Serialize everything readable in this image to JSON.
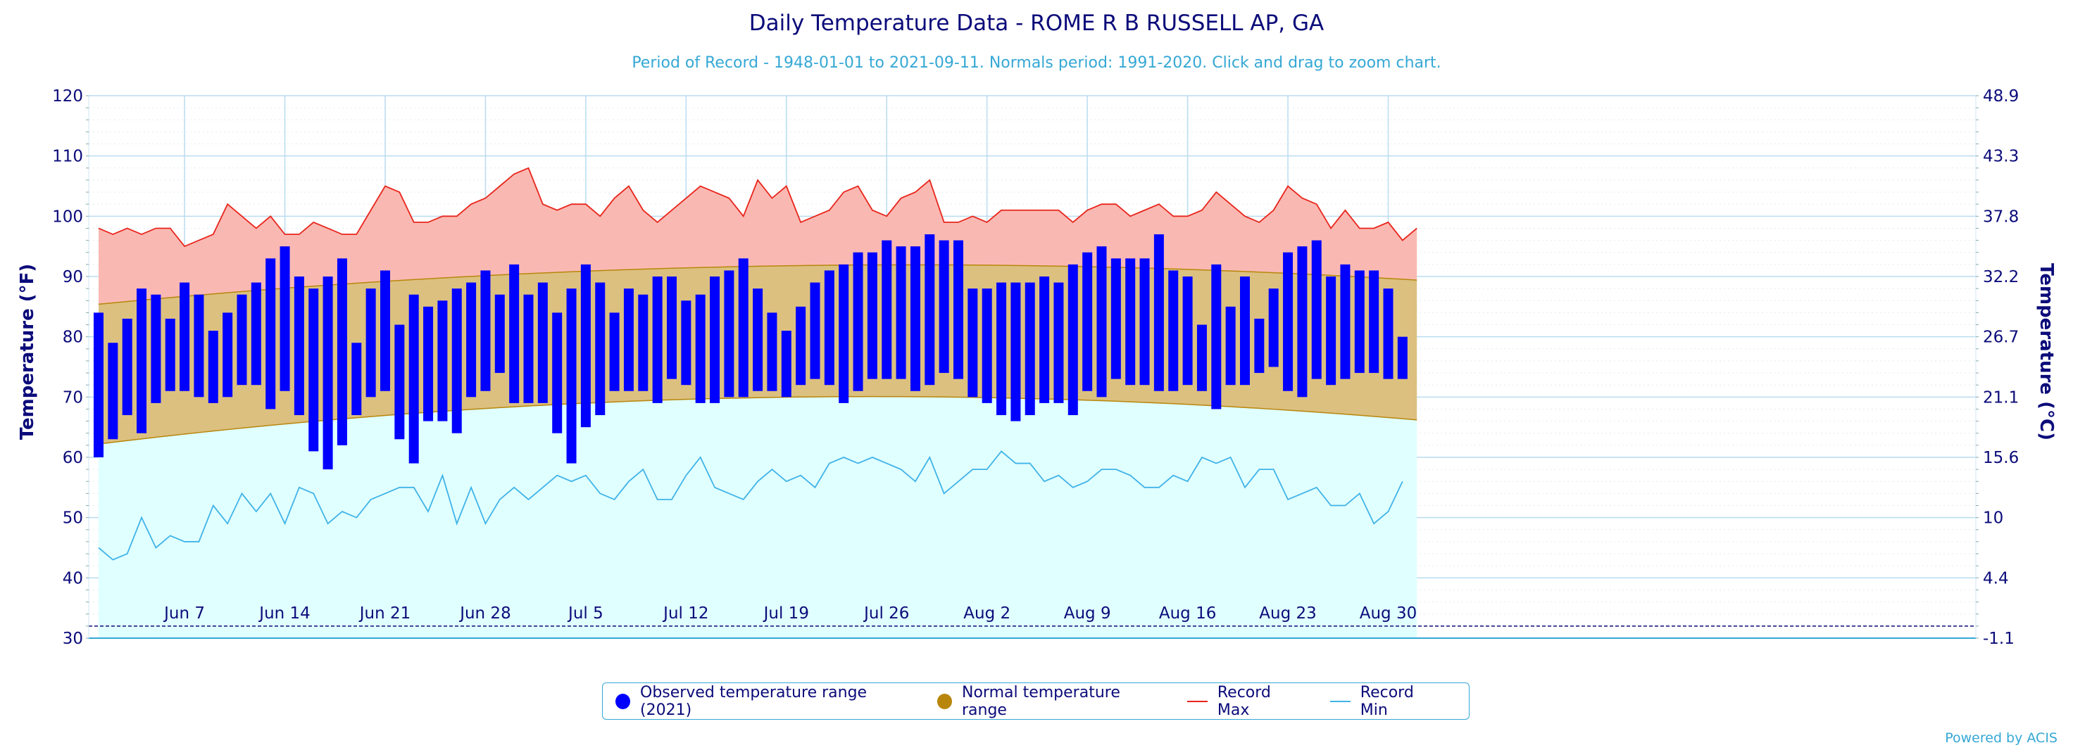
{
  "chart_data": {
    "type": "bar",
    "title": "Daily Temperature Data - ROME R B RUSSELL AP, GA",
    "subtitle": "Period of Record - 1948-01-01 to 2021-09-11. Normals period: 1991-2020. Click and drag to zoom chart.",
    "ylabel": "Temperature (°F)",
    "y2label": "Temperature (°C)",
    "ylim": [
      30,
      120
    ],
    "yticks": [
      30,
      40,
      50,
      60,
      70,
      80,
      90,
      100,
      110,
      120
    ],
    "y2ticks": [
      "-1.1",
      "4.4",
      "10",
      "15.6",
      "21.1",
      "26.7",
      "32.2",
      "37.8",
      "43.3",
      "48.9"
    ],
    "x_start": "Jun 1",
    "x_ticks": [
      {
        "label": "Jun 7",
        "day": 6
      },
      {
        "label": "Jun 14",
        "day": 13
      },
      {
        "label": "Jun 21",
        "day": 20
      },
      {
        "label": "Jun 28",
        "day": 27
      },
      {
        "label": "Jul 5",
        "day": 34
      },
      {
        "label": "Jul 12",
        "day": 41
      },
      {
        "label": "Jul 19",
        "day": 48
      },
      {
        "label": "Jul 26",
        "day": 55
      },
      {
        "label": "Aug 2",
        "day": 62
      },
      {
        "label": "Aug 9",
        "day": 69
      },
      {
        "label": "Aug 16",
        "day": 76
      },
      {
        "label": "Aug 23",
        "day": 83
      },
      {
        "label": "Aug 30",
        "day": 90
      }
    ],
    "freeze_line": 32,
    "legend": "bottom-center",
    "series": [
      {
        "name": "Observed temperature range (2021)",
        "color": "#0000ff",
        "max": [
          84,
          79,
          83,
          88,
          87,
          83,
          89,
          87,
          81,
          84,
          87,
          89,
          93,
          95,
          90,
          88,
          90,
          93,
          79,
          88,
          91,
          82,
          87,
          85,
          86,
          88,
          89,
          91,
          87,
          92,
          87,
          89,
          84,
          88,
          92,
          89,
          84,
          88,
          87,
          90,
          90,
          86,
          87,
          90,
          91,
          93,
          88,
          84,
          81,
          85,
          89,
          91,
          92,
          94,
          94,
          96,
          95,
          95,
          97,
          96,
          96,
          88,
          88,
          89,
          89,
          89,
          90,
          89,
          92,
          94,
          95,
          93,
          93,
          93,
          97,
          91,
          90,
          82,
          92,
          85,
          90,
          83,
          88,
          94,
          95,
          96,
          90,
          92,
          91,
          91,
          88,
          80
        ],
        "min": [
          60,
          63,
          67,
          64,
          69,
          71,
          71,
          70,
          69,
          70,
          72,
          72,
          68,
          71,
          67,
          61,
          58,
          62,
          67,
          70,
          71,
          63,
          59,
          66,
          66,
          64,
          70,
          71,
          74,
          69,
          69,
          69,
          64,
          59,
          65,
          67,
          71,
          71,
          71,
          69,
          73,
          72,
          69,
          69,
          70,
          70,
          71,
          71,
          70,
          72,
          73,
          72,
          69,
          71,
          73,
          73,
          73,
          71,
          72,
          74,
          73,
          70,
          69,
          67,
          66,
          67,
          69,
          69,
          67,
          71,
          70,
          73,
          72,
          72,
          71,
          71,
          72,
          71,
          68,
          72,
          72,
          74,
          75,
          71,
          70,
          73,
          72,
          73,
          74,
          74,
          73,
          73
        ]
      },
      {
        "name": "Normal temperature range",
        "color": "#b8860b",
        "max_start": 85.4,
        "max_peak": 91.7,
        "max_end": 89.4,
        "min_start": 62.2,
        "min_peak": 69.9,
        "min_end": 66.2
      },
      {
        "name": "Record Max",
        "color": "#e8251c",
        "values": [
          98,
          97,
          98,
          97,
          98,
          98,
          95,
          96,
          97,
          102,
          100,
          98,
          100,
          97,
          97,
          99,
          98,
          97,
          97,
          101,
          105,
          104,
          99,
          99,
          100,
          100,
          102,
          103,
          105,
          107,
          108,
          102,
          101,
          102,
          102,
          100,
          103,
          105,
          101,
          99,
          101,
          103,
          105,
          104,
          103,
          100,
          106,
          103,
          105,
          99,
          100,
          101,
          104,
          105,
          101,
          100,
          103,
          104,
          106,
          99,
          99,
          100,
          99,
          101,
          101,
          101,
          101,
          101,
          99,
          101,
          102,
          102,
          100,
          101,
          102,
          100,
          100,
          101,
          104,
          102,
          100,
          99,
          101,
          105,
          103,
          102,
          98,
          101,
          98,
          98,
          99,
          96,
          98
        ]
      },
      {
        "name": "Record Min",
        "color": "#3fb3e8",
        "values": [
          45,
          43,
          44,
          50,
          45,
          47,
          46,
          46,
          52,
          49,
          54,
          51,
          54,
          49,
          55,
          54,
          49,
          51,
          50,
          53,
          54,
          55,
          55,
          51,
          57,
          49,
          55,
          49,
          53,
          55,
          53,
          55,
          57,
          56,
          57,
          54,
          53,
          56,
          58,
          53,
          53,
          57,
          60,
          55,
          54,
          53,
          56,
          58,
          56,
          57,
          55,
          59,
          60,
          59,
          60,
          59,
          58,
          56,
          60,
          54,
          56,
          58,
          58,
          61,
          59,
          59,
          56,
          57,
          55,
          56,
          58,
          58,
          57,
          55,
          55,
          57,
          56,
          60,
          59,
          60,
          55,
          58,
          58,
          53,
          54,
          55,
          52,
          52,
          54,
          49,
          51,
          56
        ]
      }
    ]
  },
  "credit": "Powered by ACIS"
}
